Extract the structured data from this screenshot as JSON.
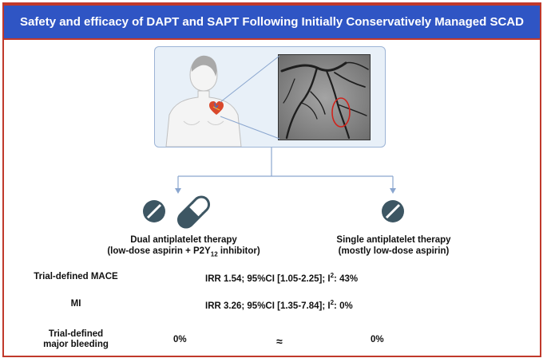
{
  "title": "Safety and efficacy of DAPT and SAPT Following Initially Conservatively Managed SCAD",
  "arms": {
    "dapt": {
      "line1": "Dual antiplatelet therapy",
      "line2_prefix": "(low-dose aspirin + P2Y",
      "line2_sub": "12",
      "line2_suffix": " inhibitor)"
    },
    "sapt": {
      "line1": "Single antiplatelet therapy",
      "line2": "(mostly low-dose aspirin)"
    }
  },
  "outcomes": {
    "mace": {
      "label": "Trial-defined MACE",
      "value_prefix": "IRR 1.54; 95%CI [1.05-2.25]; I",
      "value_sup": "2",
      "value_suffix": ": 43%"
    },
    "mi": {
      "label": "MI",
      "value_prefix": "IRR 3.26; 95%CI [1.35-7.84]; I",
      "value_sup": "2",
      "value_suffix": ": 0%"
    },
    "bleeding": {
      "label_line1": "Trial-defined",
      "label_line2": "major bleeding",
      "dapt_value": "0%",
      "approx": "≈",
      "sapt_value": "0%"
    }
  },
  "colors": {
    "header_bg": "#2f55c4",
    "frame_border": "#c0392b",
    "pill": "#3d5663",
    "connector": "#8aa6cf"
  },
  "icons": [
    "human-torso-icon",
    "heart-icon",
    "angiogram-image",
    "tablet-icon",
    "capsule-icon"
  ]
}
